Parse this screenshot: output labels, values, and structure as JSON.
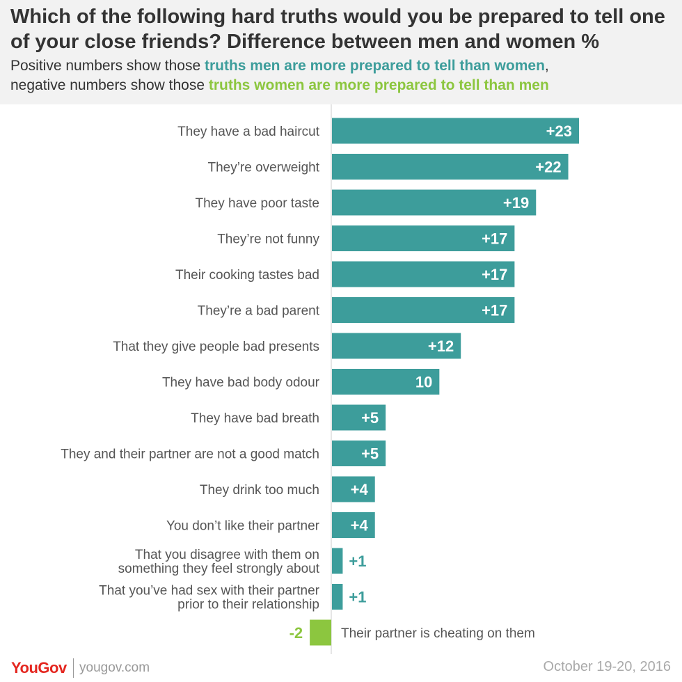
{
  "header": {
    "title": "Which of the following hard truths would you be prepared to tell one of your close friends? Difference between men and women %",
    "subtitle_part1": "Positive numbers show those ",
    "subtitle_men": "truths men are more prepared to tell than women",
    "subtitle_part2": ",",
    "subtitle_part3": "negative numbers show those ",
    "subtitle_women": "truths women are more prepared to tell than men"
  },
  "colors": {
    "positive": "#3d9d9b",
    "negative": "#8cc63f",
    "label": "#555555",
    "axis": "#cccccc"
  },
  "chart_data": {
    "type": "bar",
    "orientation": "horizontal",
    "title": "Which of the following hard truths would you be prepared to tell one of your close friends? Difference between men and women %",
    "xlabel": "",
    "ylabel": "",
    "xlim": [
      -2,
      23
    ],
    "categories": [
      [
        "They have a bad haircut"
      ],
      [
        "They’re overweight"
      ],
      [
        "They have poor taste"
      ],
      [
        "They’re not funny"
      ],
      [
        "Their cooking tastes bad"
      ],
      [
        "They’re a bad parent"
      ],
      [
        "That they give people bad presents"
      ],
      [
        "They have bad body odour"
      ],
      [
        "They have bad breath"
      ],
      [
        "They and their partner are not a good match"
      ],
      [
        "They drink too much"
      ],
      [
        "You don’t like their partner"
      ],
      [
        "That you disagree with them on",
        "something they feel strongly about"
      ],
      [
        "That you’ve had sex with their partner",
        "prior to their relationship"
      ],
      [
        "Their partner is cheating on them"
      ]
    ],
    "values": [
      23,
      22,
      19,
      17,
      17,
      17,
      12,
      10,
      5,
      5,
      4,
      4,
      1,
      1,
      -2
    ],
    "data_labels": [
      "+23",
      "+22",
      "+19",
      "+17",
      "+17",
      "+17",
      "+12",
      "10",
      "+5",
      "+5",
      "+4",
      "+4",
      "+1",
      "+1",
      "-2"
    ]
  },
  "footer": {
    "brand": "YouGov",
    "site": "yougov.com",
    "date": "October 19-20, 2016"
  }
}
